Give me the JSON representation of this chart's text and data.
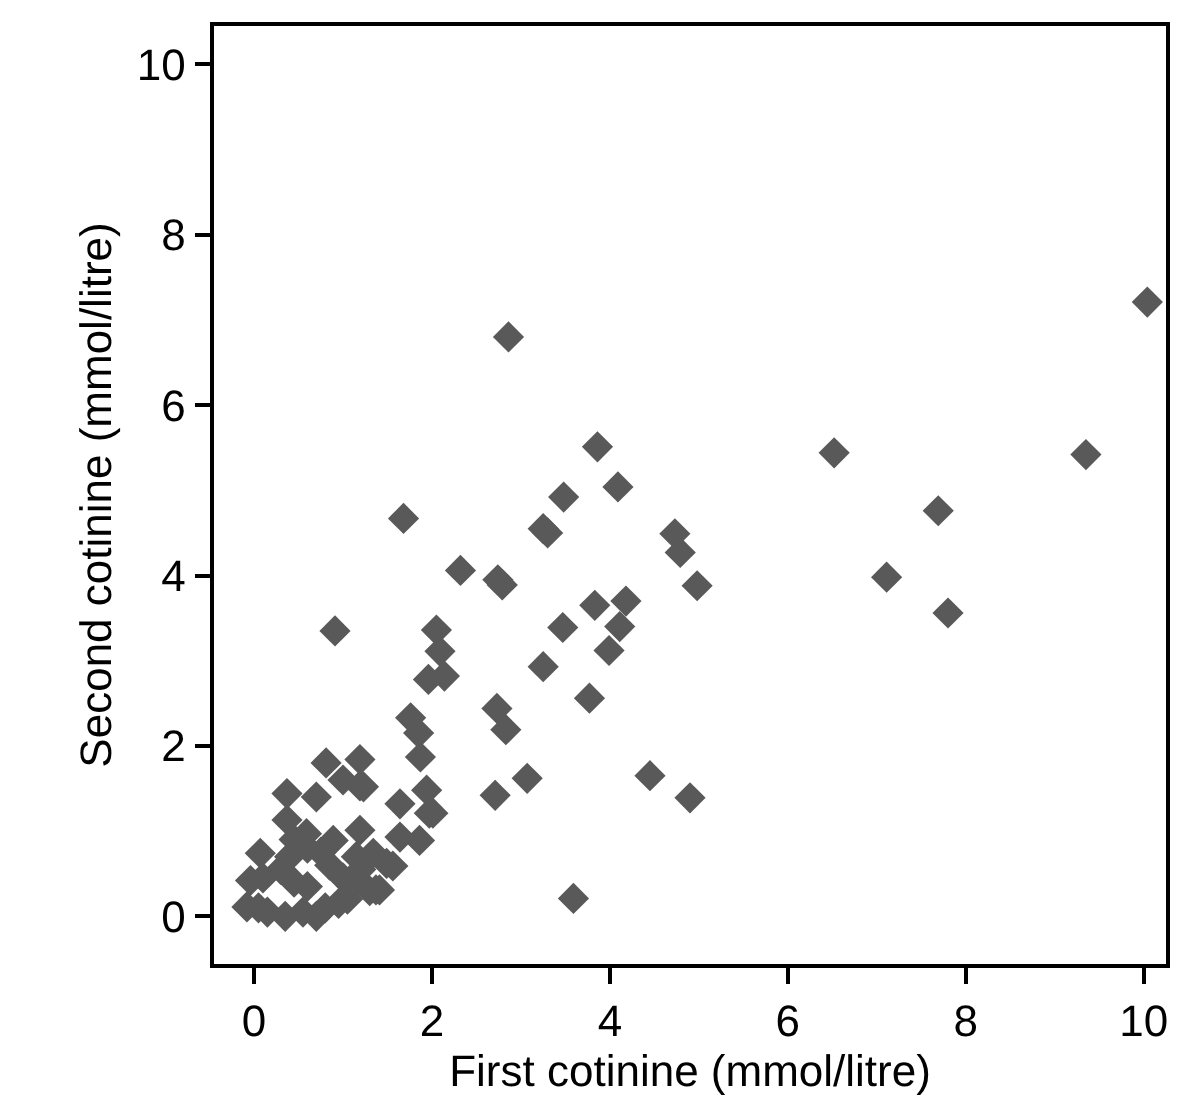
{
  "chart_data": {
    "type": "scatter",
    "xlabel": "First cotinine (mmol/litre)",
    "ylabel": "Second cotinine (mmol/litre)",
    "xlim": [
      -0.45,
      10.25
    ],
    "ylim": [
      -0.56,
      10.45
    ],
    "xticks": [
      0,
      2,
      4,
      6,
      8,
      10
    ],
    "yticks": [
      0,
      2,
      4,
      6,
      8,
      10
    ],
    "marker": "diamond",
    "series": [
      {
        "color": "#595959",
        "x": [
          10.04,
          2.86,
          6.52,
          9.35,
          3.86,
          7.69,
          4.09,
          3.48,
          3.25,
          3.3,
          1.68,
          4.73,
          4.79,
          4.98,
          2.32,
          2.74,
          2.79,
          7.11,
          7.8,
          3.83,
          4.18,
          4.11,
          3.47,
          3.99,
          3.25,
          3.77,
          0.91,
          2.05,
          2.09,
          1.96,
          2.14,
          1.76,
          1.85,
          1.87,
          2.73,
          2.83,
          2.71,
          3.07,
          4.45,
          4.9,
          3.59,
          1.64,
          1.94,
          2.01,
          1.19,
          1.19,
          1.86,
          1.37,
          1.56,
          1.34,
          0.81,
          0.37,
          0.7,
          1.0,
          1.23,
          1.97,
          0.37,
          0.59,
          0.89,
          1.19,
          1.64,
          1.49,
          1.41,
          0.07,
          -0.04,
          -0.08,
          0.05,
          0.15,
          0.45,
          0.55,
          0.6,
          0.8,
          0.85,
          0.95,
          1.0,
          1.05,
          1.1,
          0.3,
          0.6,
          0.75,
          0.1,
          0.4,
          1.2,
          1.3,
          0.45,
          0.35,
          0.7,
          1.15
        ],
        "values": [
          7.21,
          6.8,
          5.44,
          5.42,
          5.51,
          4.76,
          5.04,
          4.92,
          4.55,
          4.5,
          4.67,
          4.49,
          4.27,
          3.88,
          4.06,
          3.95,
          3.89,
          3.98,
          3.56,
          3.65,
          3.7,
          3.4,
          3.39,
          3.12,
          2.93,
          2.56,
          3.35,
          3.36,
          3.11,
          2.78,
          2.82,
          2.33,
          2.15,
          1.87,
          2.44,
          2.19,
          1.42,
          1.62,
          1.65,
          1.39,
          0.21,
          1.32,
          1.48,
          1.21,
          1.84,
          1.53,
          0.89,
          0.31,
          0.59,
          0.74,
          1.8,
          1.44,
          1.4,
          1.6,
          1.52,
          1.21,
          1.13,
          0.97,
          0.89,
          1.01,
          0.93,
          0.62,
          0.31,
          0.74,
          0.42,
          0.11,
          0.1,
          0.05,
          0.4,
          0.05,
          0.35,
          0.1,
          0.6,
          0.15,
          0.45,
          0.2,
          0.35,
          0.55,
          0.8,
          0.75,
          0.45,
          0.7,
          0.55,
          0.3,
          0.9,
          0.0,
          0.0,
          0.7
        ]
      }
    ]
  }
}
